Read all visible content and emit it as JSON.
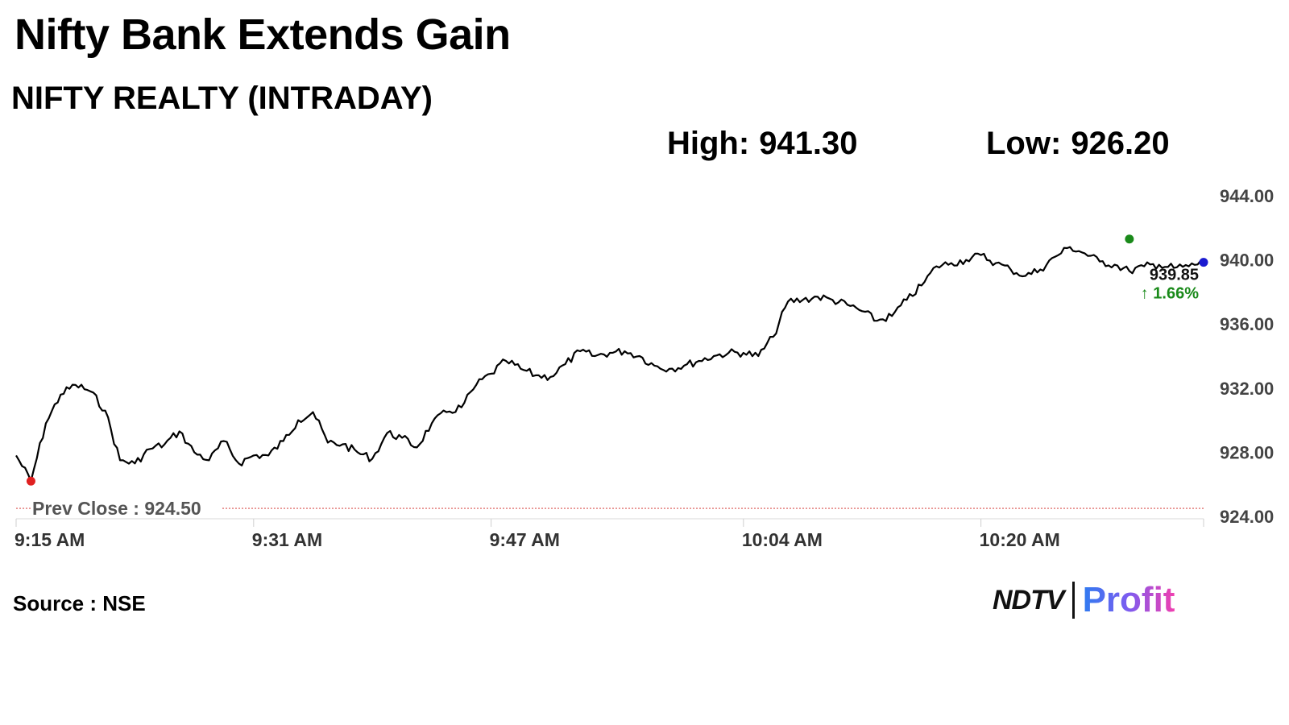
{
  "headline": "Nifty Bank Extends Gain",
  "brand": {
    "ndtv": "NDTV",
    "profit": "Profit"
  },
  "source_text": "Source : NSE",
  "colors": {
    "line": "#000000",
    "prev_close": "#d9534f",
    "low_marker": "#e02020",
    "high_marker": "#1a8a1a",
    "last_marker": "#1a1ad0",
    "change_up": "#1a8a1a"
  },
  "chart_data": {
    "type": "line",
    "title": "NIFTY REALTY (INTRADAY)",
    "stats": {
      "high_label": "High:",
      "high_value": "941.30",
      "low_label": "Low:",
      "low_value": "926.20"
    },
    "x_tick_labels": [
      "9:15 AM",
      "9:31 AM",
      "9:47 AM",
      "10:04 AM",
      "10:20 AM"
    ],
    "y_tick_labels": [
      "944.00",
      "940.00",
      "936.00",
      "932.00",
      "928.00",
      "924.00"
    ],
    "y_ticks": [
      944,
      940,
      936,
      932,
      928,
      924
    ],
    "ylim": [
      924,
      944
    ],
    "x_start": "9:15 AM",
    "x_end": "10:35 AM",
    "prev_close_label": "Prev Close : 924.50",
    "prev_close": 924.5,
    "last_value_label": "939.85",
    "change_label": "1.66%",
    "change_arrow": "↑",
    "series": [
      {
        "x": [
          "9:15",
          "9:16",
          "9:17",
          "9:18",
          "9:19",
          "9:20",
          "9:21",
          "9:22",
          "9:23",
          "9:24",
          "9:25",
          "9:26",
          "9:27",
          "9:28",
          "9:29",
          "9:30",
          "9:31",
          "9:32",
          "9:33",
          "9:34",
          "9:35",
          "9:36",
          "9:37",
          "9:38",
          "9:39",
          "9:40",
          "9:41",
          "9:42",
          "9:43",
          "9:44",
          "9:45",
          "9:46",
          "9:47",
          "9:48",
          "9:49",
          "9:50",
          "9:51",
          "9:52",
          "9:53",
          "9:54",
          "9:55",
          "9:56",
          "9:57",
          "9:58",
          "9:59",
          "10:00",
          "10:01",
          "10:02",
          "10:03",
          "10:04",
          "10:05",
          "10:06",
          "10:07",
          "10:08",
          "10:09",
          "10:10",
          "10:11",
          "10:12",
          "10:13",
          "10:14",
          "10:15",
          "10:16",
          "10:17",
          "10:18",
          "10:19",
          "10:20",
          "10:21",
          "10:22",
          "10:23",
          "10:24",
          "10:25",
          "10:26",
          "10:27",
          "10:28",
          "10:29",
          "10:30",
          "10:31",
          "10:32",
          "10:33",
          "10:34",
          "10:35"
        ],
        "values": [
          927.8,
          926.2,
          929.8,
          931.6,
          932.2,
          931.8,
          930.6,
          927.5,
          927.3,
          928.2,
          928.5,
          929.3,
          928.0,
          927.5,
          928.7,
          927.3,
          927.8,
          927.8,
          928.7,
          930.0,
          930.5,
          928.6,
          928.5,
          928.0,
          927.6,
          929.2,
          928.9,
          928.3,
          929.8,
          930.5,
          930.8,
          932.2,
          932.9,
          933.7,
          933.2,
          932.8,
          932.7,
          933.5,
          934.3,
          934.0,
          934.2,
          934.3,
          934.0,
          933.4,
          933.2,
          933.4,
          933.7,
          934.0,
          934.2,
          934.2,
          934.0,
          935.2,
          937.4,
          937.5,
          937.7,
          937.5,
          937.2,
          936.8,
          936.2,
          936.5,
          937.5,
          938.4,
          939.6,
          939.8,
          940.0,
          940.3,
          939.8,
          939.4,
          939.0,
          939.4,
          940.2,
          940.8,
          940.4,
          939.9,
          939.7,
          939.3,
          939.6,
          939.7,
          939.5,
          939.6,
          939.85
        ]
      }
    ],
    "markers": {
      "low": {
        "x": "9:16",
        "value": 926.2
      },
      "high": {
        "x": "10:30",
        "value": 941.3
      },
      "last": {
        "x": "10:35",
        "value": 939.85
      }
    },
    "grid": false,
    "legend": "none"
  }
}
